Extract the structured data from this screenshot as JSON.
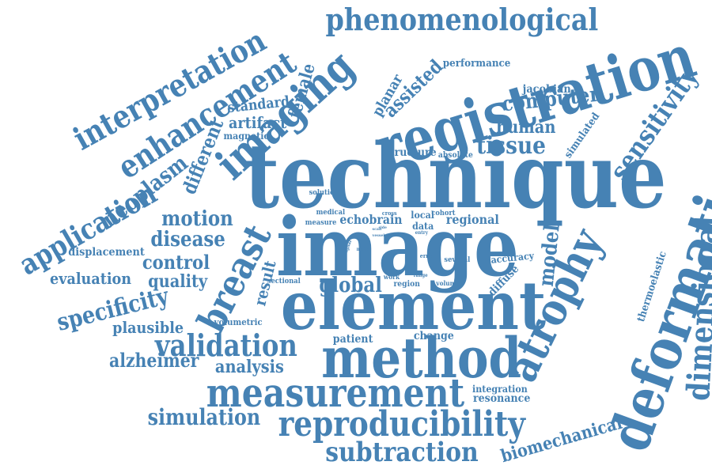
{
  "theme": {
    "word_color": "#4682b4",
    "background": "#ffffff"
  },
  "words": [
    "technique",
    "image",
    "element",
    "registration",
    "method",
    "deformation",
    "atrophy",
    "measurement",
    "reproducibility",
    "imaging",
    "breast",
    "phenomenological",
    "enhancement",
    "interpretation",
    "dimensional",
    "subtraction",
    "validation",
    "sensitivity",
    "application",
    "specificity",
    "tissue",
    "computer",
    "neoplasm",
    "simulation",
    "biomechanical",
    "alzheimer",
    "disease",
    "motion",
    "control",
    "evaluation",
    "analysis",
    "global",
    "model",
    "human",
    "different",
    "female",
    "artifact",
    "standard",
    "quality",
    "plausible",
    "displacement",
    "result",
    "assisted",
    "planar",
    "performance",
    "jacobian",
    "simulated",
    "thermoelastic",
    "regional",
    "diffuse",
    "accuracy",
    "resonance",
    "integration",
    "change",
    "patient",
    "structure",
    "absolute",
    "magnetic",
    "volumetric",
    "sectional",
    "echobrain",
    "measure",
    "medical",
    "solution",
    "cross",
    "local",
    "cohort",
    "data",
    "entry",
    "several",
    "error",
    "main",
    "region",
    "range",
    "work",
    "volume",
    "vessel",
    "scan",
    "signal",
    "side"
  ]
}
